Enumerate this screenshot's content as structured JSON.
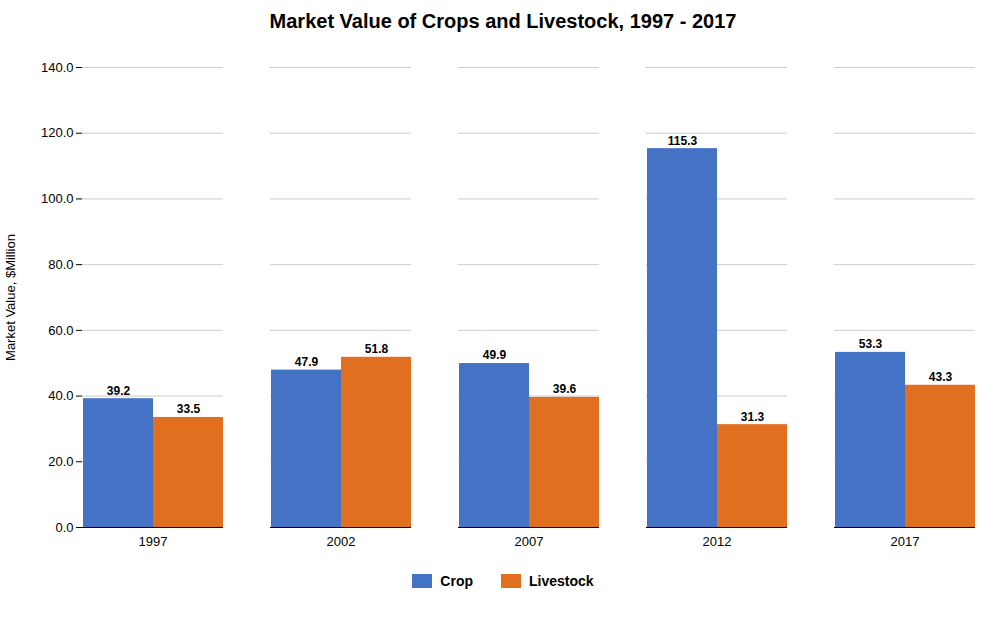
{
  "chart_data": {
    "type": "bar",
    "title": "Market Value of Crops and Livestock, 1997 - 2017",
    "ylabel": "Market Value, $Million",
    "categories": [
      "1997",
      "2002",
      "2007",
      "2012",
      "2017"
    ],
    "series": [
      {
        "name": "Crop",
        "color": "#4472C4",
        "values": [
          39.2,
          47.9,
          49.9,
          115.3,
          53.3
        ]
      },
      {
        "name": "Livestock",
        "color": "#E07020",
        "values": [
          33.5,
          51.8,
          39.6,
          31.3,
          43.3
        ]
      }
    ],
    "ylim": [
      0,
      140
    ],
    "yticks": [
      {
        "value": 0,
        "label": "0.0"
      },
      {
        "value": 20,
        "label": "20.0"
      },
      {
        "value": 40,
        "label": "40.0"
      },
      {
        "value": 60,
        "label": "60.0"
      },
      {
        "value": 80,
        "label": "80.0"
      },
      {
        "value": 100,
        "label": "100.0"
      },
      {
        "value": 120,
        "label": "120.0"
      },
      {
        "value": 140,
        "label": "140.0"
      }
    ],
    "grid": true,
    "legend": "bottom",
    "data_labels": true
  }
}
